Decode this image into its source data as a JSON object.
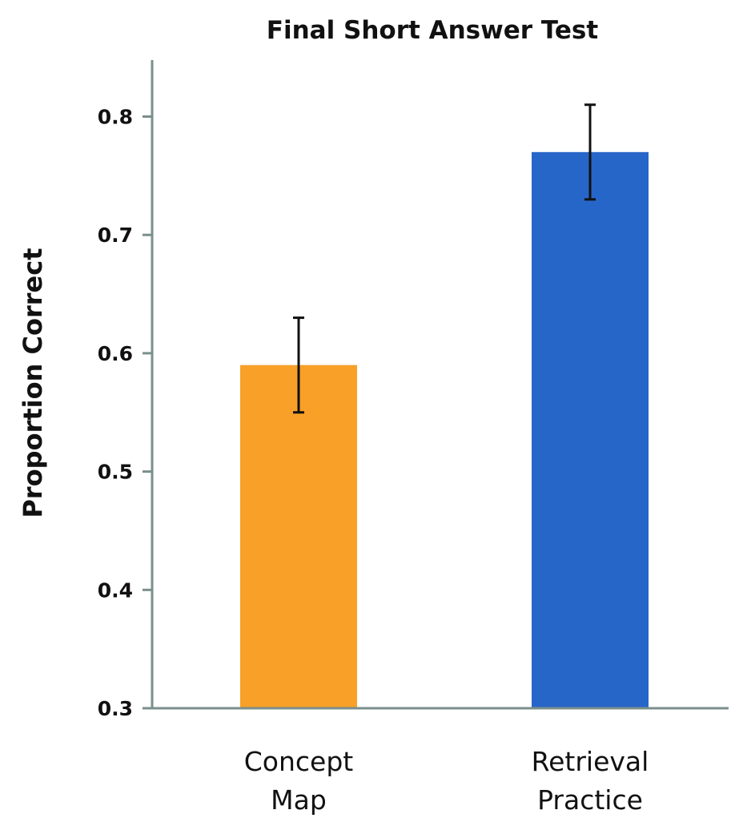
{
  "chart_data": {
    "type": "bar",
    "title": "Final Short Answer Test",
    "ylabel": "Proportion Correct",
    "xlabel": "",
    "ylim": [
      0.3,
      0.85
    ],
    "yticks": [
      "0.3",
      "0.4",
      "0.5",
      "0.6",
      "0.7",
      "0.8"
    ],
    "grid": false,
    "categories": [
      [
        "Concept",
        "Map"
      ],
      [
        "Retrieval",
        "Practice"
      ]
    ],
    "values": [
      0.59,
      0.77
    ],
    "error_bars": [
      [
        0.55,
        0.63
      ],
      [
        0.73,
        0.81
      ]
    ],
    "colors": [
      "#f8a028",
      "#2766c9"
    ],
    "axis_color": "#7a8f8c"
  }
}
